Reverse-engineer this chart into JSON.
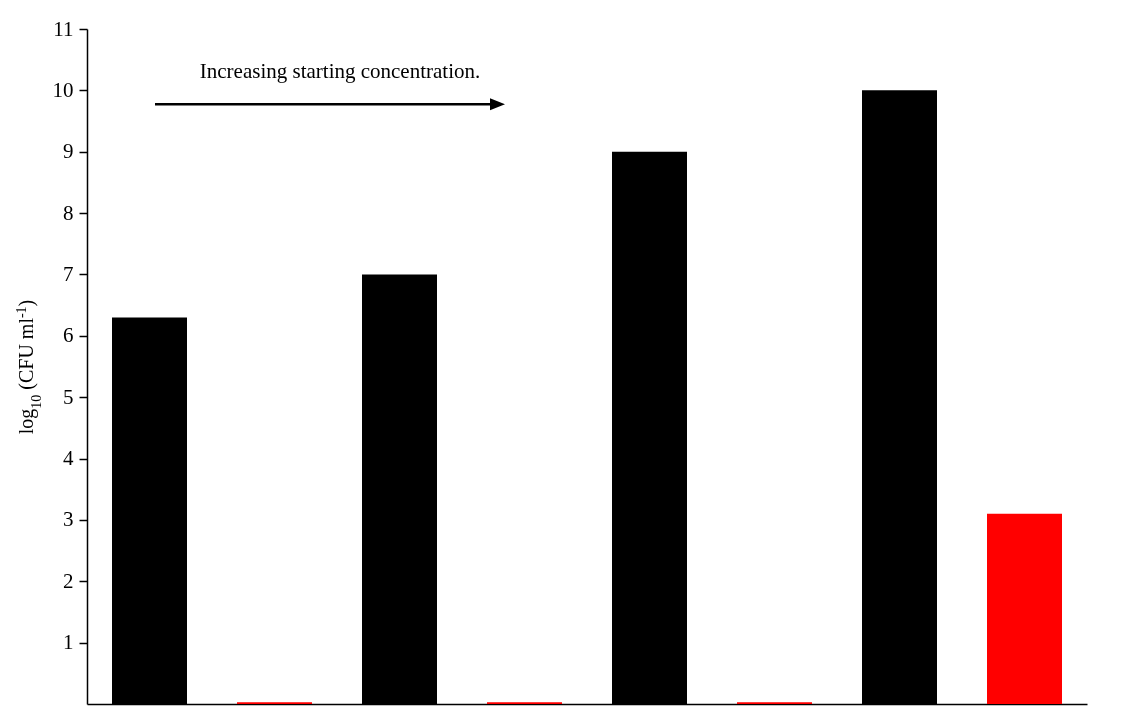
{
  "chart_data": {
    "type": "bar",
    "categories": [
      null,
      null,
      null,
      null,
      null,
      null,
      null,
      null
    ],
    "values": [
      6.3,
      0.03,
      7,
      0.03,
      9,
      0.03,
      10,
      3.1
    ],
    "colors": [
      "#000000",
      "#ff0000",
      "#000000",
      "#ff0000",
      "#000000",
      "#ff0000",
      "#000000",
      "#ff0000"
    ],
    "ylabel": "log$_{10}$ (CFU ml$^{-1}$)",
    "ylim": [
      0,
      11
    ],
    "yticks": [
      1,
      2,
      3,
      4,
      5,
      6,
      7,
      8,
      9,
      10,
      11
    ],
    "annotations": [
      "Increasing starting concentration."
    ]
  }
}
